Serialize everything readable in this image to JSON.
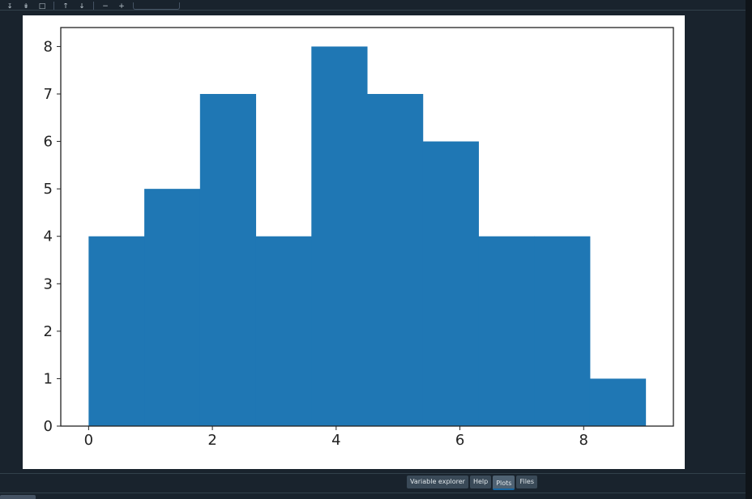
{
  "toolbar": {
    "buttons": [
      {
        "icon": "save-icon"
      },
      {
        "icon": "save-all-icon"
      },
      {
        "icon": "copy-icon"
      },
      {
        "icon": "previous-icon"
      },
      {
        "icon": "next-icon"
      },
      {
        "icon": "zoom-out-icon"
      },
      {
        "icon": "zoom-in-icon"
      }
    ],
    "zoom_value": ""
  },
  "tabs": [
    {
      "label": "Variable explorer",
      "active": false
    },
    {
      "label": "Help",
      "active": false
    },
    {
      "label": "Plots",
      "active": true
    },
    {
      "label": "Files",
      "active": false
    }
  ],
  "colors": {
    "bar": "#1f77b4",
    "background": "#19232d",
    "figure": "#ffffff"
  },
  "chart_data": {
    "type": "bar",
    "subtype": "histogram",
    "bin_edges": [
      0,
      0.9,
      1.8,
      2.7,
      3.6,
      4.5,
      5.4,
      6.3,
      7.2,
      8.1,
      9.0
    ],
    "values": [
      4,
      5,
      7,
      4,
      8,
      7,
      6,
      4,
      4,
      1
    ],
    "xticks": [
      0,
      2,
      4,
      6,
      8
    ],
    "yticks": [
      0,
      1,
      2,
      3,
      4,
      5,
      6,
      7,
      8
    ],
    "xlim": [
      -0.45,
      9.45
    ],
    "ylim": [
      0,
      8.4
    ],
    "title": "",
    "xlabel": "",
    "ylabel": "",
    "grid": false
  }
}
